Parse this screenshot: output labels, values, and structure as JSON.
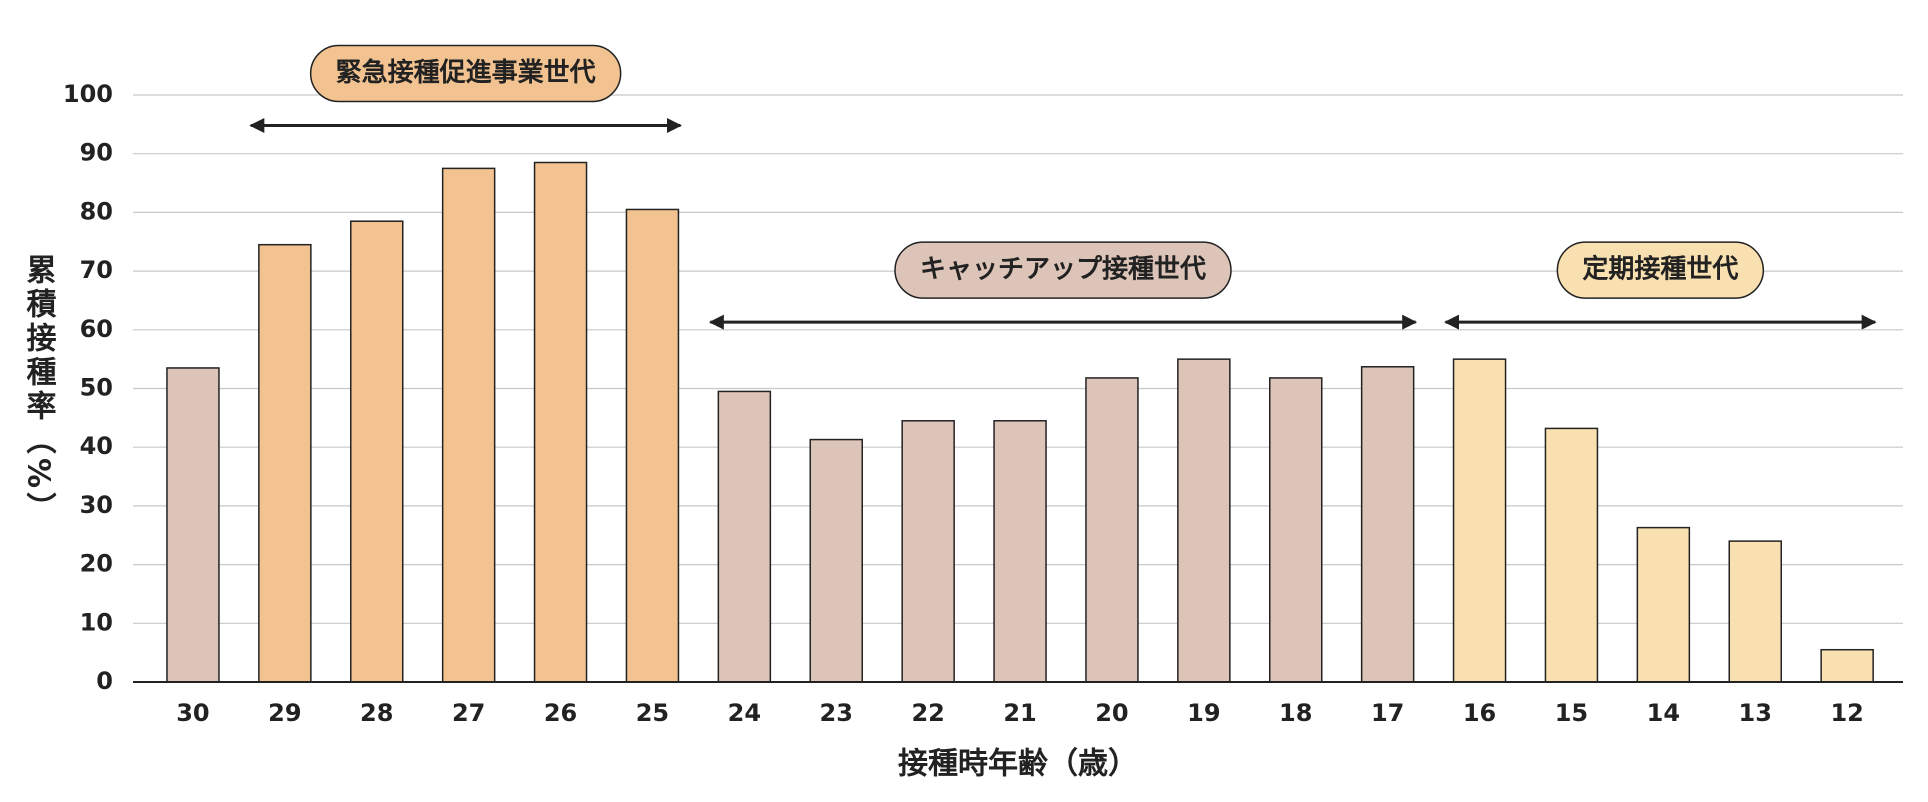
{
  "chart_data": {
    "type": "bar",
    "x_label": "接種時年齢（歳）",
    "y_label": "累積接種率（%）",
    "categories": [
      "30",
      "29",
      "28",
      "27",
      "26",
      "25",
      "24",
      "23",
      "22",
      "21",
      "20",
      "19",
      "18",
      "17",
      "16",
      "15",
      "14",
      "13",
      "12"
    ],
    "values": [
      53.5,
      74.5,
      78.5,
      87.5,
      88.5,
      80.5,
      49.5,
      41.3,
      44.5,
      44.5,
      51.8,
      55,
      51.8,
      53.7,
      55,
      43.2,
      26.3,
      24,
      5.5
    ],
    "colors": [
      "#dcc4b8",
      "#f2c391",
      "#f2c391",
      "#f2c391",
      "#f2c391",
      "#f2c391",
      "#dcc4b8",
      "#dcc4b8",
      "#dcc4b8",
      "#dcc4b8",
      "#dcc4b8",
      "#dcc4b8",
      "#dcc4b8",
      "#dcc4b8",
      "#f9e0b0",
      "#f9e0b0",
      "#f9e0b0",
      "#f9e0b0",
      "#f9e0b0"
    ],
    "annotations": [
      {
        "text": "緊急接種促進事業世代",
        "color": "#f2c391",
        "first": 1,
        "last": 5
      },
      {
        "text": "キャッチアップ接種世代",
        "color": "#dcc4b8",
        "first": 6,
        "last": 13
      },
      {
        "text": "定期接種世代",
        "color": "#f9e0b0",
        "first": 14,
        "last": 18
      }
    ],
    "ylim": [
      0,
      100
    ],
    "yticks": [
      0,
      10,
      20,
      30,
      40,
      50,
      60,
      70,
      80,
      90,
      100
    ],
    "grid": true
  }
}
